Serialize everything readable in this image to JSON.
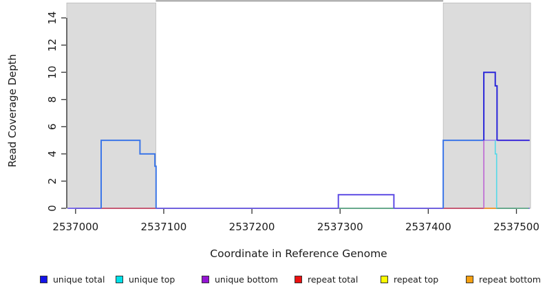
{
  "figure": {
    "background": "#ffffff"
  },
  "chart_data": {
    "type": "line",
    "subtype": "step-coverage",
    "title": "",
    "xlabel": "Coordinate in Reference Genome",
    "ylabel": "Read Coverage Depth",
    "xlim": [
      2536990,
      2537516
    ],
    "ylim": [
      0,
      15.3
    ],
    "xticks": [
      2537000,
      2537100,
      2537200,
      2537300,
      2537400,
      2537500
    ],
    "yticks": [
      0,
      2,
      4,
      6,
      8,
      10,
      12,
      14
    ],
    "grid": false,
    "axis_color": "#303030",
    "shaded_regions": [
      {
        "name": "left-shaded-region",
        "x0": 2536990,
        "x1": 2537091,
        "fill": "#dcdcdc",
        "stroke": "#b9b9b9"
      },
      {
        "name": "right-shaded-region",
        "x0": 2537417,
        "x1": 2537516,
        "fill": "#dcdcdc",
        "stroke": "#b9b9b9"
      }
    ],
    "top_boundary_line": {
      "x0": 2537091,
      "x1": 2537417,
      "y": 15.25,
      "color": "#8f8f8f"
    },
    "series": [
      {
        "name": "baseline-violet",
        "color": "#6a58e8",
        "width": 1.8,
        "points": [
          [
            2536991,
            0
          ],
          [
            2537515,
            0
          ]
        ]
      },
      {
        "name": "repeat-total-left",
        "color": "#e25555",
        "width": 1.6,
        "points": [
          [
            2537029,
            0
          ],
          [
            2537091,
            0
          ]
        ]
      },
      {
        "name": "repeat-total-right",
        "color": "#e25555",
        "width": 1.6,
        "points": [
          [
            2537417,
            0
          ],
          [
            2537463,
            0
          ]
        ]
      },
      {
        "name": "repeat-bottom-right",
        "color": "#ffa020",
        "width": 1.8,
        "points": [
          [
            2537463,
            0
          ],
          [
            2537477,
            0
          ]
        ]
      },
      {
        "name": "green-baseline-middle",
        "color": "#63be74",
        "width": 1.6,
        "points": [
          [
            2537298,
            0
          ],
          [
            2537361,
            0
          ]
        ]
      },
      {
        "name": "green-baseline-right",
        "color": "#63be74",
        "width": 1.6,
        "points": [
          [
            2537477,
            0
          ],
          [
            2537514,
            0
          ]
        ]
      },
      {
        "name": "unique-bottom-level5",
        "color": "#9c85e8",
        "width": 1.6,
        "points": [
          [
            2537463,
            5
          ],
          [
            2537515,
            5
          ]
        ]
      },
      {
        "name": "unique-total-left-step",
        "color": "#3b76e8",
        "width": 2,
        "points": [
          [
            2537029,
            0
          ],
          [
            2537029,
            5
          ],
          [
            2537073,
            5
          ],
          [
            2537073,
            4
          ],
          [
            2537090,
            4
          ],
          [
            2537090,
            3.1
          ],
          [
            2537091.3,
            3.1
          ],
          [
            2537091.3,
            0
          ]
        ]
      },
      {
        "name": "unique-middle-step",
        "color": "#5c4ae4",
        "width": 2,
        "points": [
          [
            2537298,
            0
          ],
          [
            2537298,
            1
          ],
          [
            2537361,
            1
          ],
          [
            2537361,
            0
          ]
        ]
      },
      {
        "name": "unique-total-right-rise",
        "color": "#3b76e8",
        "width": 2,
        "points": [
          [
            2537417,
            0
          ],
          [
            2537417,
            5
          ],
          [
            2537463,
            5
          ]
        ]
      },
      {
        "name": "unique-bottom-rise",
        "color": "#bc64d4",
        "width": 1.6,
        "points": [
          [
            2537463,
            0
          ],
          [
            2537463,
            5
          ]
        ]
      },
      {
        "name": "unique-top-drop",
        "color": "#52d9e8",
        "width": 1.6,
        "points": [
          [
            2537476,
            5
          ],
          [
            2537476,
            4
          ],
          [
            2537477.5,
            4
          ],
          [
            2537477.5,
            0
          ]
        ]
      },
      {
        "name": "unique-total-spike",
        "color": "#2a26d9",
        "width": 2,
        "points": [
          [
            2537463,
            5
          ],
          [
            2537463,
            10
          ],
          [
            2537476,
            10
          ],
          [
            2537476,
            9
          ],
          [
            2537478,
            9
          ],
          [
            2537478,
            5
          ]
        ]
      },
      {
        "name": "unique-total-level5-after-spike",
        "color": "#3b2bd8",
        "width": 2,
        "points": [
          [
            2537478,
            5
          ],
          [
            2537515,
            5
          ]
        ]
      }
    ],
    "legend": {
      "position": "bottom",
      "items": [
        {
          "label": "unique total",
          "color": "#1414e8"
        },
        {
          "label": "unique top",
          "color": "#00e0e8"
        },
        {
          "label": "unique bottom",
          "color": "#9414d3"
        },
        {
          "label": "repeat total",
          "color": "#ea1010"
        },
        {
          "label": "repeat top",
          "color": "#fcfc00"
        },
        {
          "label": "repeat bottom",
          "color": "#f5a011"
        }
      ]
    }
  }
}
